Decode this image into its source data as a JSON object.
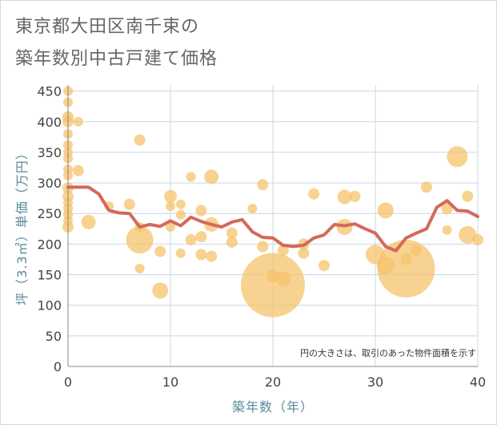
{
  "title_lines": [
    "東京都大田区南千束の",
    "築年数別中古戸建て価格"
  ],
  "chart_data": {
    "type": "scatter",
    "title": "東京都大田区南千束の築年数別中古戸建て価格",
    "xlabel": "築年数（年）",
    "ylabel": "坪（3.3㎡）単価（万円）",
    "xlim": [
      0,
      40
    ],
    "ylim": [
      0,
      460
    ],
    "x_ticks": [
      0,
      10,
      20,
      30,
      40
    ],
    "y_ticks": [
      0,
      50,
      100,
      150,
      200,
      250,
      300,
      350,
      400,
      450
    ],
    "grid": true,
    "note": "円の大きさは、取引のあった物件面積を示す",
    "colors": {
      "bubble": "#f5c36b",
      "line": "#d4695a",
      "grid": "#c9d8df",
      "axis_text": "#5b8a9a"
    },
    "series": [
      {
        "kind": "bubbles",
        "points": [
          {
            "x": 0,
            "y": 450,
            "size": 6
          },
          {
            "x": 0,
            "y": 432,
            "size": 6
          },
          {
            "x": 0,
            "y": 408,
            "size": 7
          },
          {
            "x": 0,
            "y": 400,
            "size": 7
          },
          {
            "x": 0,
            "y": 380,
            "size": 6
          },
          {
            "x": 0,
            "y": 362,
            "size": 6
          },
          {
            "x": 0,
            "y": 350,
            "size": 6
          },
          {
            "x": 0,
            "y": 340,
            "size": 6
          },
          {
            "x": 0,
            "y": 322,
            "size": 6
          },
          {
            "x": 0,
            "y": 312,
            "size": 6
          },
          {
            "x": 0,
            "y": 292,
            "size": 7
          },
          {
            "x": 0,
            "y": 278,
            "size": 7
          },
          {
            "x": 0,
            "y": 268,
            "size": 6
          },
          {
            "x": 0,
            "y": 258,
            "size": 6
          },
          {
            "x": 0,
            "y": 248,
            "size": 6
          },
          {
            "x": 0,
            "y": 238,
            "size": 6
          },
          {
            "x": 0,
            "y": 228,
            "size": 7
          },
          {
            "x": 1,
            "y": 400,
            "size": 6
          },
          {
            "x": 1,
            "y": 320,
            "size": 7
          },
          {
            "x": 2,
            "y": 236,
            "size": 9
          },
          {
            "x": 4,
            "y": 262,
            "size": 6
          },
          {
            "x": 6,
            "y": 265,
            "size": 7
          },
          {
            "x": 7,
            "y": 370,
            "size": 7
          },
          {
            "x": 7,
            "y": 207,
            "size": 17
          },
          {
            "x": 7,
            "y": 160,
            "size": 6
          },
          {
            "x": 7,
            "y": 228,
            "size": 6
          },
          {
            "x": 9,
            "y": 188,
            "size": 7
          },
          {
            "x": 9,
            "y": 124,
            "size": 10
          },
          {
            "x": 10,
            "y": 278,
            "size": 8
          },
          {
            "x": 10,
            "y": 262,
            "size": 6
          },
          {
            "x": 10,
            "y": 228,
            "size": 6
          },
          {
            "x": 11,
            "y": 248,
            "size": 6
          },
          {
            "x": 11,
            "y": 185,
            "size": 6
          },
          {
            "x": 11,
            "y": 265,
            "size": 6
          },
          {
            "x": 12,
            "y": 310,
            "size": 6
          },
          {
            "x": 12,
            "y": 207,
            "size": 7
          },
          {
            "x": 13,
            "y": 255,
            "size": 7
          },
          {
            "x": 13,
            "y": 212,
            "size": 7
          },
          {
            "x": 13,
            "y": 183,
            "size": 7
          },
          {
            "x": 14,
            "y": 310,
            "size": 9
          },
          {
            "x": 14,
            "y": 232,
            "size": 9
          },
          {
            "x": 14,
            "y": 180,
            "size": 7
          },
          {
            "x": 16,
            "y": 218,
            "size": 7
          },
          {
            "x": 16,
            "y": 203,
            "size": 7
          },
          {
            "x": 18,
            "y": 258,
            "size": 6
          },
          {
            "x": 19,
            "y": 297,
            "size": 7
          },
          {
            "x": 19,
            "y": 196,
            "size": 7
          },
          {
            "x": 20,
            "y": 133,
            "size": 40
          },
          {
            "x": 20,
            "y": 148,
            "size": 8
          },
          {
            "x": 21,
            "y": 143,
            "size": 9
          },
          {
            "x": 21,
            "y": 190,
            "size": 7
          },
          {
            "x": 23,
            "y": 200,
            "size": 7
          },
          {
            "x": 23,
            "y": 185,
            "size": 7
          },
          {
            "x": 24,
            "y": 282,
            "size": 7
          },
          {
            "x": 25,
            "y": 165,
            "size": 7
          },
          {
            "x": 27,
            "y": 277,
            "size": 9
          },
          {
            "x": 27,
            "y": 228,
            "size": 10
          },
          {
            "x": 28,
            "y": 278,
            "size": 7
          },
          {
            "x": 30,
            "y": 183,
            "size": 12
          },
          {
            "x": 31,
            "y": 165,
            "size": 11
          },
          {
            "x": 31,
            "y": 255,
            "size": 10
          },
          {
            "x": 33,
            "y": 160,
            "size": 36
          },
          {
            "x": 33,
            "y": 175,
            "size": 7
          },
          {
            "x": 34,
            "y": 190,
            "size": 7
          },
          {
            "x": 35,
            "y": 293,
            "size": 7
          },
          {
            "x": 37,
            "y": 258,
            "size": 7
          },
          {
            "x": 37,
            "y": 223,
            "size": 6
          },
          {
            "x": 38,
            "y": 343,
            "size": 13
          },
          {
            "x": 39,
            "y": 278,
            "size": 7
          },
          {
            "x": 39,
            "y": 215,
            "size": 11
          },
          {
            "x": 40,
            "y": 207,
            "size": 7
          }
        ]
      },
      {
        "kind": "trend-line",
        "points": [
          {
            "x": 0,
            "y": 293
          },
          {
            "x": 1,
            "y": 293
          },
          {
            "x": 2,
            "y": 293
          },
          {
            "x": 3,
            "y": 282
          },
          {
            "x": 4,
            "y": 255
          },
          {
            "x": 5,
            "y": 251
          },
          {
            "x": 6,
            "y": 250
          },
          {
            "x": 7,
            "y": 228
          },
          {
            "x": 8,
            "y": 232
          },
          {
            "x": 9,
            "y": 229
          },
          {
            "x": 10,
            "y": 238
          },
          {
            "x": 11,
            "y": 230
          },
          {
            "x": 12,
            "y": 244
          },
          {
            "x": 13,
            "y": 237
          },
          {
            "x": 14,
            "y": 232
          },
          {
            "x": 15,
            "y": 228
          },
          {
            "x": 16,
            "y": 236
          },
          {
            "x": 17,
            "y": 240
          },
          {
            "x": 18,
            "y": 220
          },
          {
            "x": 19,
            "y": 211
          },
          {
            "x": 20,
            "y": 210
          },
          {
            "x": 21,
            "y": 198
          },
          {
            "x": 22,
            "y": 196
          },
          {
            "x": 23,
            "y": 198
          },
          {
            "x": 24,
            "y": 210
          },
          {
            "x": 25,
            "y": 215
          },
          {
            "x": 26,
            "y": 232
          },
          {
            "x": 27,
            "y": 230
          },
          {
            "x": 28,
            "y": 233
          },
          {
            "x": 29,
            "y": 225
          },
          {
            "x": 30,
            "y": 218
          },
          {
            "x": 31,
            "y": 196
          },
          {
            "x": 32,
            "y": 189
          },
          {
            "x": 33,
            "y": 210
          },
          {
            "x": 34,
            "y": 218
          },
          {
            "x": 35,
            "y": 225
          },
          {
            "x": 36,
            "y": 260
          },
          {
            "x": 37,
            "y": 271
          },
          {
            "x": 38,
            "y": 255
          },
          {
            "x": 39,
            "y": 254
          },
          {
            "x": 40,
            "y": 245
          }
        ]
      }
    ]
  }
}
